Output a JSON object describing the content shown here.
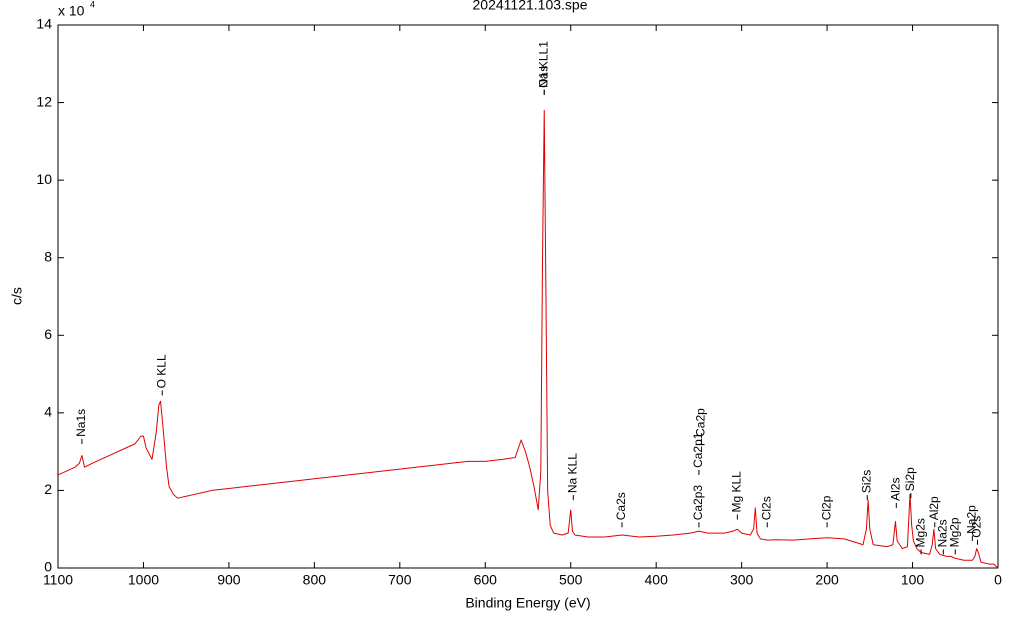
{
  "chart_data": {
    "type": "line",
    "title": "20241121.103.spe",
    "x_label": "Binding Energy (eV)",
    "y_label": "c/s",
    "y_multiplier": {
      "base": "x 10",
      "exponent": "4"
    },
    "xlim": [
      1100,
      0
    ],
    "ylim": [
      0,
      14
    ],
    "xticks": [
      1100,
      1000,
      900,
      800,
      700,
      600,
      500,
      400,
      300,
      200,
      100,
      0
    ],
    "yticks": [
      0,
      2,
      4,
      6,
      8,
      10,
      12,
      14
    ],
    "grid": false,
    "x": [
      1100,
      1090,
      1080,
      1075,
      1072,
      1069,
      1060,
      1050,
      1040,
      1030,
      1020,
      1010,
      1003,
      1000,
      997,
      990,
      985,
      982,
      980,
      977,
      973,
      970,
      965,
      960,
      950,
      940,
      930,
      920,
      900,
      880,
      860,
      840,
      820,
      800,
      780,
      760,
      740,
      720,
      700,
      680,
      660,
      640,
      620,
      600,
      580,
      565,
      558,
      553,
      548,
      543,
      538,
      535,
      533,
      531,
      529,
      527,
      524,
      520,
      510,
      503,
      500,
      498,
      495,
      480,
      460,
      440,
      420,
      400,
      380,
      360,
      350,
      340,
      320,
      310,
      305,
      300,
      290,
      286,
      284,
      282,
      278,
      270,
      260,
      240,
      220,
      200,
      180,
      165,
      158,
      154,
      152,
      150,
      146,
      130,
      123,
      120,
      118,
      112,
      106,
      103,
      101,
      99,
      95,
      90,
      80,
      77,
      75,
      73,
      68,
      60,
      55,
      50,
      40,
      30,
      27,
      25,
      23,
      20,
      10,
      5,
      0
    ],
    "series": [
      {
        "name": "20241121.103.spe",
        "color": "#e00000",
        "values": [
          2.4,
          2.5,
          2.6,
          2.7,
          2.9,
          2.6,
          2.7,
          2.8,
          2.9,
          3.0,
          3.1,
          3.2,
          3.4,
          3.4,
          3.1,
          2.8,
          3.5,
          4.2,
          4.3,
          3.6,
          2.6,
          2.1,
          1.9,
          1.8,
          1.85,
          1.9,
          1.95,
          2.0,
          2.05,
          2.1,
          2.15,
          2.2,
          2.25,
          2.3,
          2.35,
          2.4,
          2.45,
          2.5,
          2.55,
          2.6,
          2.65,
          2.7,
          2.75,
          2.75,
          2.8,
          2.85,
          3.3,
          3.0,
          2.6,
          2.1,
          1.5,
          2.5,
          8,
          11.8,
          7,
          2,
          1.1,
          0.9,
          0.85,
          0.9,
          1.5,
          0.95,
          0.85,
          0.8,
          0.8,
          0.85,
          0.8,
          0.82,
          0.85,
          0.9,
          0.95,
          0.9,
          0.9,
          0.95,
          1.0,
          0.9,
          0.85,
          1.0,
          1.55,
          0.9,
          0.75,
          0.72,
          0.73,
          0.72,
          0.75,
          0.78,
          0.75,
          0.65,
          0.6,
          1.0,
          1.75,
          1.0,
          0.6,
          0.55,
          0.6,
          1.2,
          0.7,
          0.5,
          0.55,
          1.9,
          1.1,
          0.7,
          0.5,
          0.4,
          0.35,
          0.6,
          1.0,
          0.5,
          0.35,
          0.3,
          0.3,
          0.25,
          0.2,
          0.2,
          0.3,
          0.5,
          0.4,
          0.15,
          0.1,
          0.1,
          0.0
        ]
      }
    ],
    "annotations": [
      {
        "text": "Na1s",
        "x": 1072,
        "y": 3.2
      },
      {
        "text": "O KLL",
        "x": 978,
        "y": 4.45
      },
      {
        "text": "O1s",
        "x": 531,
        "y": 12.2
      },
      {
        "text": "Na KLL1",
        "x": 531,
        "y": 12.2
      },
      {
        "text": "Na KLL",
        "x": 497,
        "y": 1.75
      },
      {
        "text": "Ca2s",
        "x": 440,
        "y": 1.05
      },
      {
        "text": "Ca2p3",
        "x": 350,
        "y": 1.05
      },
      {
        "text": "Ca2p1",
        "x": 350,
        "y": 2.4
      },
      {
        "text": "Ca2p",
        "x": 347,
        "y": 3.2
      },
      {
        "text": "Mg KLL",
        "x": 305,
        "y": 1.25
      },
      {
        "text": "Cl2s",
        "x": 270,
        "y": 1.05
      },
      {
        "text": "Cl2p",
        "x": 200,
        "y": 1.05
      },
      {
        "text": "Si2s",
        "x": 153,
        "y": 1.75
      },
      {
        "text": "Al2s",
        "x": 119,
        "y": 1.55
      },
      {
        "text": "Si2p",
        "x": 102,
        "y": 1.8
      },
      {
        "text": "Mg2s",
        "x": 90,
        "y": 0.35
      },
      {
        "text": "Al2p",
        "x": 74,
        "y": 1.05
      },
      {
        "text": "Na2s",
        "x": 64,
        "y": 0.35
      },
      {
        "text": "Mg2p",
        "x": 50,
        "y": 0.35
      },
      {
        "text": "Na2p",
        "x": 30,
        "y": 0.7
      },
      {
        "text": "O2s",
        "x": 24,
        "y": 0.6
      }
    ]
  }
}
